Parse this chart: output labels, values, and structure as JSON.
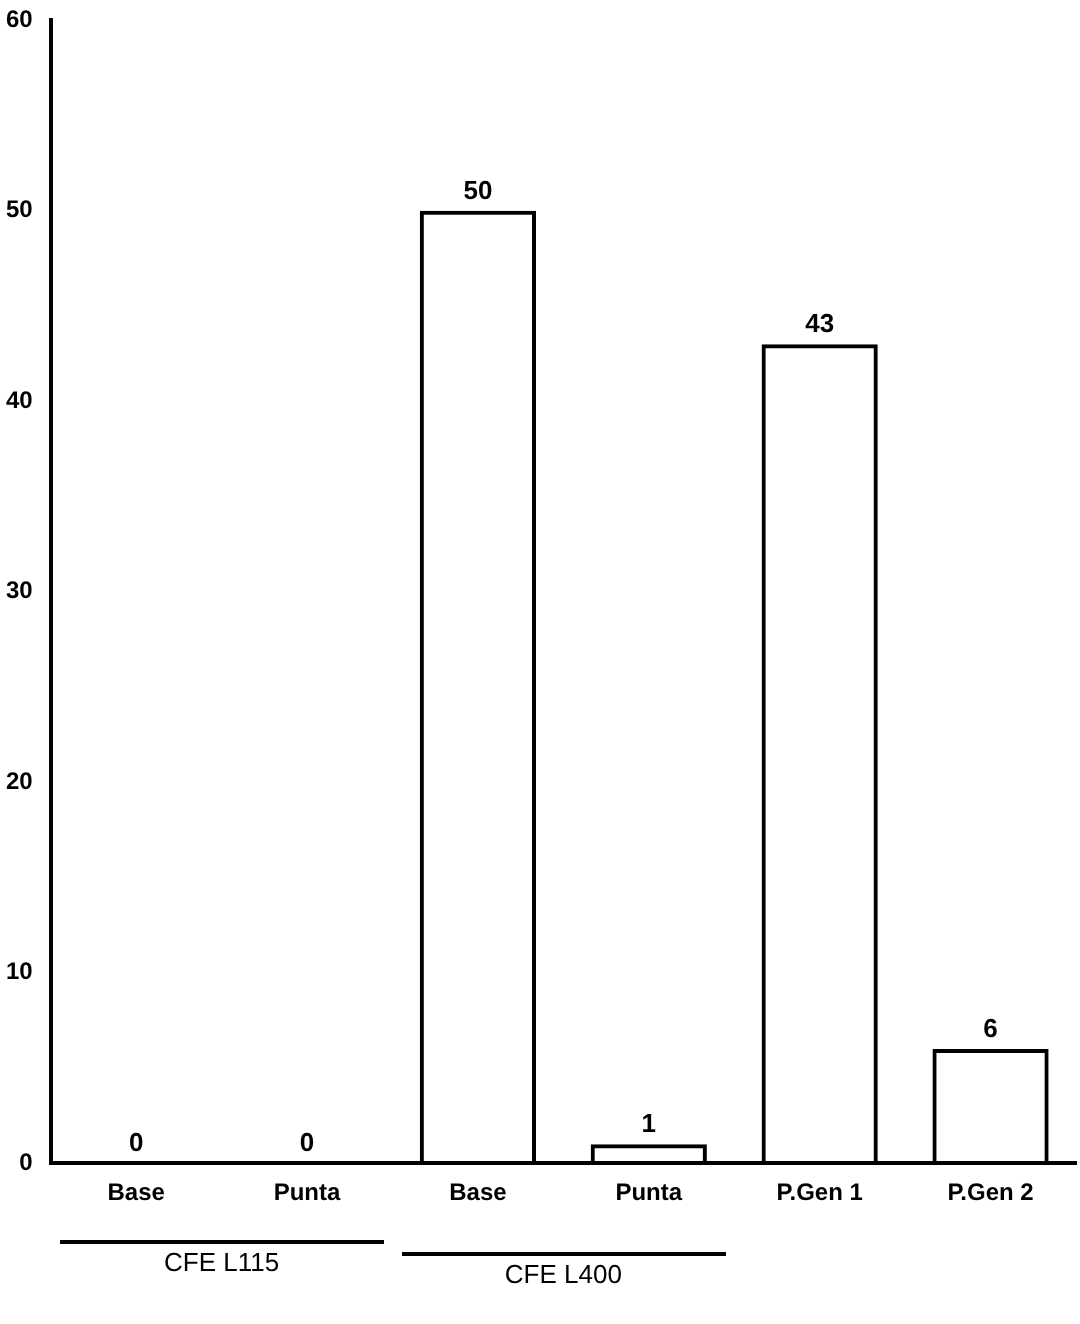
{
  "chart_data": {
    "type": "bar",
    "categories": [
      "Base",
      "Punta",
      "Base",
      "Punta",
      "P.Gen 1",
      "P.Gen 2"
    ],
    "values": [
      0,
      0,
      50,
      1,
      43,
      6
    ],
    "color": "#000000",
    "ylim": [
      0,
      60
    ],
    "yticks": [
      0,
      10,
      20,
      30,
      40,
      50,
      60
    ],
    "grid": false,
    "data_labels": true,
    "annotations": [
      "CFE L115",
      "CFE L400"
    ]
  }
}
